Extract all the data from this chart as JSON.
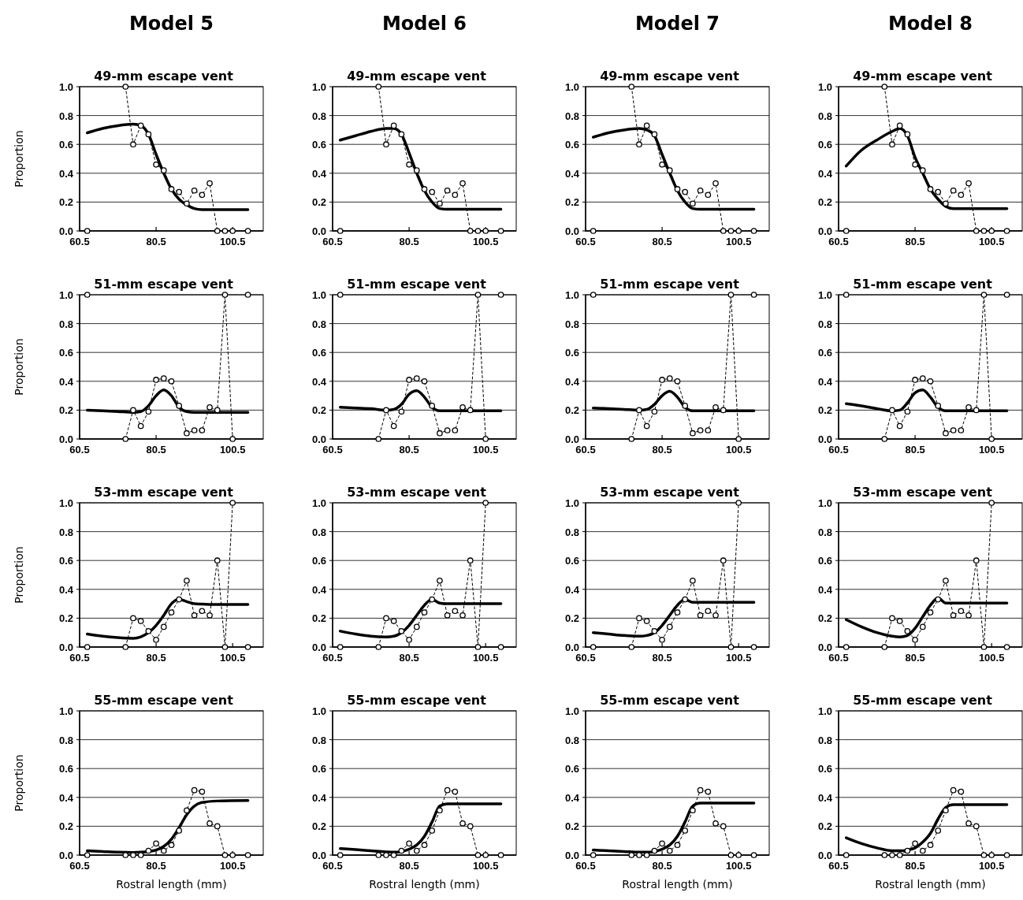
{
  "chart_data": [
    {
      "type": "line",
      "title": "Model 5",
      "subtitle": "49-mm escape vent",
      "ylabel": "Proportion",
      "x": [
        62.5,
        64.5,
        66.5,
        68.5,
        70.5,
        72.5,
        74.5,
        76.5,
        78.5,
        80.5,
        82.5,
        84.5,
        86.5,
        88.5,
        90.5,
        92.5,
        94.5,
        96.5,
        98.5,
        100.5,
        102.5,
        104.5
      ],
      "xlim": [
        60.5,
        108.5
      ],
      "xticks": [
        60.5,
        80.5,
        100.5
      ],
      "ylim": [
        0,
        1
      ],
      "yticks": [
        {
          "value": 0,
          "label": "0.0"
        },
        {
          "value": 0.2,
          "label": "0.2"
        },
        {
          "value": 0.4,
          "label": "0.4"
        },
        {
          "value": 0.6,
          "label": "0.6"
        },
        {
          "value": 0.8,
          "label": "0.8"
        },
        {
          "value": 1,
          "label": "1.0"
        }
      ],
      "grid": "y",
      "series": [
        {
          "type": "line",
          "color": "#000000",
          "marker": "circle",
          "line_style": "dashed",
          "values": [
            0,
            null,
            null,
            null,
            null,
            1.0,
            0.6,
            0.73,
            0.67,
            0.46,
            0.42,
            0.29,
            0.27,
            0.19,
            0.28,
            0.25,
            0.33,
            0,
            0,
            0,
            null,
            0
          ]
        },
        {
          "type": "line",
          "color": "#000000",
          "marker": "none",
          "line_style": "solid",
          "x": [
            62.5,
            66.5,
            70.5,
            74.5,
            76.5,
            78.5,
            80.5,
            82.5,
            84.5,
            86.5,
            88.5,
            90.5,
            92.5,
            96.5,
            104.5
          ],
          "values": [
            0.68,
            0.71,
            0.73,
            0.74,
            0.73,
            0.67,
            0.53,
            0.4,
            0.29,
            0.22,
            0.18,
            0.155,
            0.148,
            0.148,
            0.148
          ]
        }
      ]
    },
    {
      "type": "line",
      "title": "Model 6",
      "subtitle": "49-mm escape vent",
      "x": [
        62.5,
        64.5,
        66.5,
        68.5,
        70.5,
        72.5,
        74.5,
        76.5,
        78.5,
        80.5,
        82.5,
        84.5,
        86.5,
        88.5,
        90.5,
        92.5,
        94.5,
        96.5,
        98.5,
        100.5,
        102.5,
        104.5
      ],
      "xlim": [
        60.5,
        108.5
      ],
      "xticks": [
        60.5,
        80.5,
        100.5
      ],
      "ylim": [
        0,
        1
      ],
      "yticks": [
        {
          "value": 0,
          "label": "0.0"
        },
        {
          "value": 0.2,
          "label": "0.2"
        },
        {
          "value": 0.4,
          "label": "0.4"
        },
        {
          "value": 0.6,
          "label": "0.6"
        },
        {
          "value": 0.8,
          "label": "0.8"
        },
        {
          "value": 1,
          "label": "1.0"
        }
      ],
      "grid": "y",
      "series": [
        {
          "type": "line",
          "color": "#000000",
          "marker": "circle",
          "line_style": "dashed",
          "values": [
            0,
            null,
            null,
            null,
            null,
            1.0,
            0.6,
            0.73,
            0.67,
            0.46,
            0.42,
            0.29,
            0.27,
            0.19,
            0.28,
            0.25,
            0.33,
            0,
            0,
            0,
            null,
            0
          ]
        },
        {
          "type": "line",
          "color": "#000000",
          "marker": "none",
          "line_style": "solid",
          "x": [
            62.5,
            66.5,
            70.5,
            74.5,
            76.5,
            78.5,
            80.5,
            82.5,
            84.5,
            86.5,
            88.5,
            90.5,
            92.5,
            96.5,
            104.5
          ],
          "values": [
            0.63,
            0.66,
            0.69,
            0.71,
            0.71,
            0.67,
            0.54,
            0.4,
            0.28,
            0.2,
            0.155,
            0.15,
            0.15,
            0.15,
            0.15
          ]
        }
      ]
    },
    {
      "type": "line",
      "title": "Model 7",
      "subtitle": "49-mm escape vent",
      "x": [
        62.5,
        64.5,
        66.5,
        68.5,
        70.5,
        72.5,
        74.5,
        76.5,
        78.5,
        80.5,
        82.5,
        84.5,
        86.5,
        88.5,
        90.5,
        92.5,
        94.5,
        96.5,
        98.5,
        100.5,
        102.5,
        104.5
      ],
      "xlim": [
        60.5,
        108.5
      ],
      "xticks": [
        60.5,
        80.5,
        100.5
      ],
      "ylim": [
        0,
        1
      ],
      "yticks": [
        {
          "value": 0,
          "label": "0.0"
        },
        {
          "value": 0.2,
          "label": "0.2"
        },
        {
          "value": 0.4,
          "label": "0.4"
        },
        {
          "value": 0.6,
          "label": "0.6"
        },
        {
          "value": 0.8,
          "label": "0.8"
        },
        {
          "value": 1,
          "label": "1.0"
        }
      ],
      "grid": "y",
      "series": [
        {
          "type": "line",
          "color": "#000000",
          "marker": "circle",
          "line_style": "dashed",
          "values": [
            0,
            null,
            null,
            null,
            null,
            1.0,
            0.6,
            0.73,
            0.67,
            0.46,
            0.42,
            0.29,
            0.27,
            0.19,
            0.28,
            0.25,
            0.33,
            0,
            0,
            0,
            null,
            0
          ]
        },
        {
          "type": "line",
          "color": "#000000",
          "marker": "none",
          "line_style": "solid",
          "x": [
            62.5,
            66.5,
            70.5,
            74.5,
            76.5,
            78.5,
            80.5,
            82.5,
            84.5,
            86.5,
            88.5,
            90.5,
            92.5,
            96.5,
            104.5
          ],
          "values": [
            0.65,
            0.68,
            0.7,
            0.71,
            0.7,
            0.66,
            0.53,
            0.4,
            0.28,
            0.2,
            0.155,
            0.15,
            0.15,
            0.15,
            0.15
          ]
        }
      ]
    },
    {
      "type": "line",
      "title": "Model 8",
      "subtitle": "49-mm escape vent",
      "x": [
        62.5,
        64.5,
        66.5,
        68.5,
        70.5,
        72.5,
        74.5,
        76.5,
        78.5,
        80.5,
        82.5,
        84.5,
        86.5,
        88.5,
        90.5,
        92.5,
        94.5,
        96.5,
        98.5,
        100.5,
        102.5,
        104.5
      ],
      "xlim": [
        60.5,
        108.5
      ],
      "xticks": [
        60.5,
        80.5,
        100.5
      ],
      "ylim": [
        0,
        1
      ],
      "yticks": [
        {
          "value": 0,
          "label": "0.0"
        },
        {
          "value": 0.2,
          "label": "0.2"
        },
        {
          "value": 0.4,
          "label": "0.4"
        },
        {
          "value": 0.6,
          "label": "0.6"
        },
        {
          "value": 0.8,
          "label": "0.8"
        },
        {
          "value": 1,
          "label": "1.0"
        }
      ],
      "grid": "y",
      "series": [
        {
          "type": "line",
          "color": "#000000",
          "marker": "circle",
          "line_style": "dashed",
          "values": [
            0,
            null,
            null,
            null,
            null,
            1.0,
            0.6,
            0.73,
            0.67,
            0.46,
            0.42,
            0.29,
            0.27,
            0.19,
            0.28,
            0.25,
            0.33,
            0,
            0,
            0,
            null,
            0
          ]
        },
        {
          "type": "line",
          "color": "#000000",
          "marker": "none",
          "line_style": "solid",
          "x": [
            62.5,
            66.5,
            70.5,
            74.5,
            76.5,
            78.5,
            80.5,
            82.5,
            84.5,
            86.5,
            88.5,
            90.5,
            92.5,
            96.5,
            104.5
          ],
          "values": [
            0.45,
            0.56,
            0.63,
            0.69,
            0.71,
            0.66,
            0.51,
            0.4,
            0.29,
            0.22,
            0.17,
            0.155,
            0.155,
            0.155,
            0.155
          ]
        }
      ]
    },
    {
      "type": "line",
      "title": "51-mm escape vent",
      "ylabel": "Proportion",
      "x": [
        62.5,
        64.5,
        66.5,
        68.5,
        70.5,
        72.5,
        74.5,
        76.5,
        78.5,
        80.5,
        82.5,
        84.5,
        86.5,
        88.5,
        90.5,
        92.5,
        94.5,
        96.5,
        98.5,
        100.5,
        102.5,
        104.5
      ],
      "xlim": [
        60.5,
        108.5
      ],
      "xticks": [
        60.5,
        80.5,
        100.5
      ],
      "ylim": [
        0,
        1
      ],
      "yticks": [
        {
          "value": 0,
          "label": "0.0"
        },
        {
          "value": 0.2,
          "label": "0.2"
        },
        {
          "value": 0.4,
          "label": "0.4"
        },
        {
          "value": 0.6,
          "label": "0.6"
        },
        {
          "value": 0.8,
          "label": "0.8"
        },
        {
          "value": 1,
          "label": "1.0"
        }
      ],
      "grid": "y",
      "series": [
        {
          "type": "line",
          "color": "#000000",
          "marker": "circle",
          "line_style": "dashed",
          "values": [
            1.0,
            null,
            null,
            null,
            null,
            0,
            0.2,
            0.09,
            0.19,
            0.41,
            0.42,
            0.4,
            0.23,
            0.04,
            0.06,
            0.06,
            0.22,
            0.2,
            1.0,
            0,
            null,
            1.0
          ]
        },
        {
          "type": "line",
          "color": "#000000",
          "marker": "none",
          "line_style": "solid",
          "x": [
            62.5,
            66.5,
            70.5,
            74.5,
            76.5,
            78.5,
            80.5,
            82.5,
            84.5,
            86.5,
            88.5,
            90.5,
            92.5,
            96.5,
            104.5
          ],
          "values": [
            0.2,
            0.195,
            0.19,
            0.185,
            0.19,
            0.23,
            0.3,
            0.34,
            0.3,
            0.22,
            0.19,
            0.185,
            0.185,
            0.185,
            0.185
          ]
        }
      ]
    },
    {
      "type": "line",
      "title": "51-mm escape vent",
      "x": [
        62.5,
        64.5,
        66.5,
        68.5,
        70.5,
        72.5,
        74.5,
        76.5,
        78.5,
        80.5,
        82.5,
        84.5,
        86.5,
        88.5,
        90.5,
        92.5,
        94.5,
        96.5,
        98.5,
        100.5,
        102.5,
        104.5
      ],
      "xlim": [
        60.5,
        108.5
      ],
      "xticks": [
        60.5,
        80.5,
        100.5
      ],
      "ylim": [
        0,
        1
      ],
      "yticks": [
        {
          "value": 0,
          "label": "0.0"
        },
        {
          "value": 0.2,
          "label": "0.2"
        },
        {
          "value": 0.4,
          "label": "0.4"
        },
        {
          "value": 0.6,
          "label": "0.6"
        },
        {
          "value": 0.8,
          "label": "0.8"
        },
        {
          "value": 1,
          "label": "1.0"
        }
      ],
      "grid": "y",
      "series": [
        {
          "type": "line",
          "color": "#000000",
          "marker": "circle",
          "line_style": "dashed",
          "values": [
            1.0,
            null,
            null,
            null,
            null,
            0,
            0.2,
            0.09,
            0.19,
            0.41,
            0.42,
            0.4,
            0.23,
            0.04,
            0.06,
            0.06,
            0.22,
            0.2,
            1.0,
            0,
            null,
            1.0
          ]
        },
        {
          "type": "line",
          "color": "#000000",
          "marker": "none",
          "line_style": "solid",
          "x": [
            62.5,
            66.5,
            70.5,
            74.5,
            76.5,
            78.5,
            80.5,
            82.5,
            84.5,
            86.5,
            88.5,
            90.5,
            92.5,
            96.5,
            104.5
          ],
          "values": [
            0.22,
            0.215,
            0.21,
            0.2,
            0.205,
            0.24,
            0.31,
            0.335,
            0.29,
            0.22,
            0.195,
            0.195,
            0.195,
            0.195,
            0.195
          ]
        }
      ]
    },
    {
      "type": "line",
      "title": "51-mm escape vent",
      "x": [
        62.5,
        64.5,
        66.5,
        68.5,
        70.5,
        72.5,
        74.5,
        76.5,
        78.5,
        80.5,
        82.5,
        84.5,
        86.5,
        88.5,
        90.5,
        92.5,
        94.5,
        96.5,
        98.5,
        100.5,
        102.5,
        104.5
      ],
      "xlim": [
        60.5,
        108.5
      ],
      "xticks": [
        60.5,
        80.5,
        100.5
      ],
      "ylim": [
        0,
        1
      ],
      "yticks": [
        {
          "value": 0,
          "label": "0.0"
        },
        {
          "value": 0.2,
          "label": "0.2"
        },
        {
          "value": 0.4,
          "label": "0.4"
        },
        {
          "value": 0.6,
          "label": "0.6"
        },
        {
          "value": 0.8,
          "label": "0.8"
        },
        {
          "value": 1,
          "label": "1.0"
        }
      ],
      "grid": "y",
      "series": [
        {
          "type": "line",
          "color": "#000000",
          "marker": "circle",
          "line_style": "dashed",
          "values": [
            1.0,
            null,
            null,
            null,
            null,
            0,
            0.2,
            0.09,
            0.19,
            0.41,
            0.42,
            0.4,
            0.23,
            0.04,
            0.06,
            0.06,
            0.22,
            0.2,
            1.0,
            0,
            null,
            1.0
          ]
        },
        {
          "type": "line",
          "color": "#000000",
          "marker": "none",
          "line_style": "solid",
          "x": [
            62.5,
            66.5,
            70.5,
            74.5,
            76.5,
            78.5,
            80.5,
            82.5,
            84.5,
            86.5,
            88.5,
            90.5,
            92.5,
            96.5,
            104.5
          ],
          "values": [
            0.215,
            0.21,
            0.205,
            0.2,
            0.205,
            0.24,
            0.3,
            0.33,
            0.29,
            0.22,
            0.195,
            0.195,
            0.195,
            0.195,
            0.195
          ]
        }
      ]
    },
    {
      "type": "line",
      "title": "51-mm escape vent",
      "x": [
        62.5,
        64.5,
        66.5,
        68.5,
        70.5,
        72.5,
        74.5,
        76.5,
        78.5,
        80.5,
        82.5,
        84.5,
        86.5,
        88.5,
        90.5,
        92.5,
        94.5,
        96.5,
        98.5,
        100.5,
        102.5,
        104.5
      ],
      "xlim": [
        60.5,
        108.5
      ],
      "xticks": [
        60.5,
        80.5,
        100.5
      ],
      "ylim": [
        0,
        1
      ],
      "yticks": [
        {
          "value": 0,
          "label": "0.0"
        },
        {
          "value": 0.2,
          "label": "0.2"
        },
        {
          "value": 0.4,
          "label": "0.4"
        },
        {
          "value": 0.6,
          "label": "0.6"
        },
        {
          "value": 0.8,
          "label": "0.8"
        },
        {
          "value": 1,
          "label": "1.0"
        }
      ],
      "grid": "y",
      "series": [
        {
          "type": "line",
          "color": "#000000",
          "marker": "circle",
          "line_style": "dashed",
          "values": [
            1.0,
            null,
            null,
            null,
            null,
            0,
            0.2,
            0.09,
            0.19,
            0.41,
            0.42,
            0.4,
            0.23,
            0.04,
            0.06,
            0.06,
            0.22,
            0.2,
            1.0,
            0,
            null,
            1.0
          ]
        },
        {
          "type": "line",
          "color": "#000000",
          "marker": "none",
          "line_style": "solid",
          "x": [
            62.5,
            66.5,
            70.5,
            74.5,
            76.5,
            78.5,
            80.5,
            82.5,
            84.5,
            86.5,
            88.5,
            90.5,
            92.5,
            96.5,
            104.5
          ],
          "values": [
            0.245,
            0.23,
            0.21,
            0.195,
            0.2,
            0.25,
            0.32,
            0.34,
            0.29,
            0.22,
            0.195,
            0.195,
            0.195,
            0.195,
            0.195
          ]
        }
      ]
    },
    {
      "type": "line",
      "title": "53-mm escape vent",
      "ylabel": "Proportion",
      "x": [
        62.5,
        64.5,
        66.5,
        68.5,
        70.5,
        72.5,
        74.5,
        76.5,
        78.5,
        80.5,
        82.5,
        84.5,
        86.5,
        88.5,
        90.5,
        92.5,
        94.5,
        96.5,
        98.5,
        100.5,
        102.5,
        104.5
      ],
      "xlim": [
        60.5,
        108.5
      ],
      "xticks": [
        60.5,
        80.5,
        100.5
      ],
      "ylim": [
        0,
        1
      ],
      "yticks": [
        {
          "value": 0,
          "label": "0.0"
        },
        {
          "value": 0.2,
          "label": "0.2"
        },
        {
          "value": 0.4,
          "label": "0.4"
        },
        {
          "value": 0.6,
          "label": "0.6"
        },
        {
          "value": 0.8,
          "label": "0.8"
        },
        {
          "value": 1,
          "label": "1.0"
        }
      ],
      "grid": "y",
      "series": [
        {
          "type": "line",
          "color": "#000000",
          "marker": "circle",
          "line_style": "dashed",
          "values": [
            0,
            null,
            null,
            null,
            null,
            0,
            0.2,
            0.18,
            0.11,
            0.05,
            0.14,
            0.24,
            0.33,
            0.46,
            0.22,
            0.25,
            0.22,
            0.6,
            0,
            1.0,
            null,
            0
          ]
        },
        {
          "type": "line",
          "color": "#000000",
          "marker": "none",
          "line_style": "solid",
          "x": [
            62.5,
            66.5,
            70.5,
            74.5,
            76.5,
            78.5,
            80.5,
            82.5,
            84.5,
            86.5,
            88.5,
            90.5,
            92.5,
            96.5,
            104.5
          ],
          "values": [
            0.09,
            0.075,
            0.065,
            0.06,
            0.07,
            0.1,
            0.15,
            0.22,
            0.3,
            0.33,
            0.315,
            0.3,
            0.298,
            0.295,
            0.295
          ]
        }
      ]
    },
    {
      "type": "line",
      "title": "53-mm escape vent",
      "x": [
        62.5,
        64.5,
        66.5,
        68.5,
        70.5,
        72.5,
        74.5,
        76.5,
        78.5,
        80.5,
        82.5,
        84.5,
        86.5,
        88.5,
        90.5,
        92.5,
        94.5,
        96.5,
        98.5,
        100.5,
        102.5,
        104.5
      ],
      "xlim": [
        60.5,
        108.5
      ],
      "xticks": [
        60.5,
        80.5,
        100.5
      ],
      "ylim": [
        0,
        1
      ],
      "yticks": [
        {
          "value": 0,
          "label": "0.0"
        },
        {
          "value": 0.2,
          "label": "0.2"
        },
        {
          "value": 0.4,
          "label": "0.4"
        },
        {
          "value": 0.6,
          "label": "0.6"
        },
        {
          "value": 0.8,
          "label": "0.8"
        },
        {
          "value": 1,
          "label": "1.0"
        }
      ],
      "grid": "y",
      "series": [
        {
          "type": "line",
          "color": "#000000",
          "marker": "circle",
          "line_style": "dashed",
          "values": [
            0,
            null,
            null,
            null,
            null,
            0,
            0.2,
            0.18,
            0.11,
            0.05,
            0.14,
            0.24,
            0.33,
            0.46,
            0.22,
            0.25,
            0.22,
            0.6,
            0,
            1.0,
            null,
            0
          ]
        },
        {
          "type": "line",
          "color": "#000000",
          "marker": "none",
          "line_style": "solid",
          "x": [
            62.5,
            66.5,
            70.5,
            74.5,
            76.5,
            78.5,
            80.5,
            82.5,
            84.5,
            86.5,
            88.5,
            90.5,
            92.5,
            96.5,
            104.5
          ],
          "values": [
            0.11,
            0.09,
            0.075,
            0.07,
            0.075,
            0.1,
            0.15,
            0.22,
            0.29,
            0.33,
            0.305,
            0.3,
            0.3,
            0.3,
            0.3
          ]
        }
      ]
    },
    {
      "type": "line",
      "title": "53-mm escape vent",
      "x": [
        62.5,
        64.5,
        66.5,
        68.5,
        70.5,
        72.5,
        74.5,
        76.5,
        78.5,
        80.5,
        82.5,
        84.5,
        86.5,
        88.5,
        90.5,
        92.5,
        94.5,
        96.5,
        98.5,
        100.5,
        102.5,
        104.5
      ],
      "xlim": [
        60.5,
        108.5
      ],
      "xticks": [
        60.5,
        80.5,
        100.5
      ],
      "ylim": [
        0,
        1
      ],
      "yticks": [
        {
          "value": 0,
          "label": "0.0"
        },
        {
          "value": 0.2,
          "label": "0.2"
        },
        {
          "value": 0.4,
          "label": "0.4"
        },
        {
          "value": 0.6,
          "label": "0.6"
        },
        {
          "value": 0.8,
          "label": "0.8"
        },
        {
          "value": 1,
          "label": "1.0"
        }
      ],
      "grid": "y",
      "series": [
        {
          "type": "line",
          "color": "#000000",
          "marker": "circle",
          "line_style": "dashed",
          "values": [
            0,
            null,
            null,
            null,
            null,
            0,
            0.2,
            0.18,
            0.11,
            0.05,
            0.14,
            0.24,
            0.33,
            0.46,
            0.22,
            0.25,
            0.22,
            0.6,
            0,
            1.0,
            null,
            0
          ]
        },
        {
          "type": "line",
          "color": "#000000",
          "marker": "none",
          "line_style": "solid",
          "x": [
            62.5,
            66.5,
            70.5,
            74.5,
            76.5,
            78.5,
            80.5,
            82.5,
            84.5,
            86.5,
            88.5,
            90.5,
            92.5,
            96.5,
            104.5
          ],
          "values": [
            0.1,
            0.09,
            0.08,
            0.075,
            0.08,
            0.1,
            0.15,
            0.22,
            0.29,
            0.33,
            0.31,
            0.31,
            0.31,
            0.31,
            0.31
          ]
        }
      ]
    },
    {
      "type": "line",
      "title": "53-mm escape vent",
      "x": [
        62.5,
        64.5,
        66.5,
        68.5,
        70.5,
        72.5,
        74.5,
        76.5,
        78.5,
        80.5,
        82.5,
        84.5,
        86.5,
        88.5,
        90.5,
        92.5,
        94.5,
        96.5,
        98.5,
        100.5,
        102.5,
        104.5
      ],
      "xlim": [
        60.5,
        108.5
      ],
      "xticks": [
        60.5,
        80.5,
        100.5
      ],
      "ylim": [
        0,
        1
      ],
      "yticks": [
        {
          "value": 0,
          "label": "0.0"
        },
        {
          "value": 0.2,
          "label": "0.2"
        },
        {
          "value": 0.4,
          "label": "0.4"
        },
        {
          "value": 0.6,
          "label": "0.6"
        },
        {
          "value": 0.8,
          "label": "0.8"
        },
        {
          "value": 1,
          "label": "1.0"
        }
      ],
      "grid": "y",
      "series": [
        {
          "type": "line",
          "color": "#000000",
          "marker": "circle",
          "line_style": "dashed",
          "values": [
            0,
            null,
            null,
            null,
            null,
            0,
            0.2,
            0.18,
            0.11,
            0.05,
            0.14,
            0.24,
            0.33,
            0.46,
            0.22,
            0.25,
            0.22,
            0.6,
            0,
            1.0,
            null,
            0
          ]
        },
        {
          "type": "line",
          "color": "#000000",
          "marker": "none",
          "line_style": "solid",
          "x": [
            62.5,
            66.5,
            70.5,
            74.5,
            76.5,
            78.5,
            80.5,
            82.5,
            84.5,
            86.5,
            88.5,
            90.5,
            92.5,
            96.5,
            104.5
          ],
          "values": [
            0.19,
            0.14,
            0.1,
            0.075,
            0.07,
            0.08,
            0.13,
            0.21,
            0.29,
            0.34,
            0.305,
            0.305,
            0.305,
            0.305,
            0.305
          ]
        }
      ]
    },
    {
      "type": "line",
      "title": "55-mm escape vent",
      "ylabel": "Proportion",
      "xlabel": "Rostral length (mm)",
      "x": [
        62.5,
        64.5,
        66.5,
        68.5,
        70.5,
        72.5,
        74.5,
        76.5,
        78.5,
        80.5,
        82.5,
        84.5,
        86.5,
        88.5,
        90.5,
        92.5,
        94.5,
        96.5,
        98.5,
        100.5,
        102.5,
        104.5
      ],
      "xlim": [
        60.5,
        108.5
      ],
      "xticks": [
        60.5,
        80.5,
        100.5
      ],
      "ylim": [
        0,
        1
      ],
      "yticks": [
        {
          "value": 0,
          "label": "0.0"
        },
        {
          "value": 0.2,
          "label": "0.2"
        },
        {
          "value": 0.4,
          "label": "0.4"
        },
        {
          "value": 0.6,
          "label": "0.6"
        },
        {
          "value": 0.8,
          "label": "0.8"
        },
        {
          "value": 1,
          "label": "1.0"
        }
      ],
      "grid": "y",
      "series": [
        {
          "type": "line",
          "color": "#000000",
          "marker": "circle",
          "line_style": "dashed",
          "values": [
            0,
            null,
            null,
            null,
            null,
            0,
            0,
            0,
            0.03,
            0.08,
            0.03,
            0.07,
            0.17,
            0.31,
            0.45,
            0.44,
            0.22,
            0.2,
            0,
            0,
            null,
            0
          ]
        },
        {
          "type": "line",
          "color": "#000000",
          "marker": "none",
          "line_style": "solid",
          "x": [
            62.5,
            66.5,
            70.5,
            74.5,
            76.5,
            78.5,
            80.5,
            82.5,
            84.5,
            86.5,
            88.5,
            90.5,
            92.5,
            96.5,
            104.5
          ],
          "values": [
            0.03,
            0.025,
            0.02,
            0.018,
            0.02,
            0.025,
            0.035,
            0.06,
            0.11,
            0.19,
            0.28,
            0.34,
            0.365,
            0.375,
            0.378
          ]
        }
      ]
    },
    {
      "type": "line",
      "title": "55-mm escape vent",
      "xlabel": "Rostral length (mm)",
      "x": [
        62.5,
        64.5,
        66.5,
        68.5,
        70.5,
        72.5,
        74.5,
        76.5,
        78.5,
        80.5,
        82.5,
        84.5,
        86.5,
        88.5,
        90.5,
        92.5,
        94.5,
        96.5,
        98.5,
        100.5,
        102.5,
        104.5
      ],
      "xlim": [
        60.5,
        108.5
      ],
      "xticks": [
        60.5,
        80.5,
        100.5
      ],
      "ylim": [
        0,
        1
      ],
      "yticks": [
        {
          "value": 0,
          "label": "0.0"
        },
        {
          "value": 0.2,
          "label": "0.2"
        },
        {
          "value": 0.4,
          "label": "0.4"
        },
        {
          "value": 0.6,
          "label": "0.6"
        },
        {
          "value": 0.8,
          "label": "0.8"
        },
        {
          "value": 1,
          "label": "1.0"
        }
      ],
      "grid": "y",
      "series": [
        {
          "type": "line",
          "color": "#000000",
          "marker": "circle",
          "line_style": "dashed",
          "values": [
            0,
            null,
            null,
            null,
            null,
            0,
            0,
            0,
            0.03,
            0.08,
            0.03,
            0.07,
            0.17,
            0.31,
            0.45,
            0.44,
            0.22,
            0.2,
            0,
            0,
            null,
            0
          ]
        },
        {
          "type": "line",
          "color": "#000000",
          "marker": "none",
          "line_style": "solid",
          "x": [
            62.5,
            66.5,
            70.5,
            74.5,
            76.5,
            78.5,
            80.5,
            82.5,
            84.5,
            86.5,
            88.5,
            90.5,
            92.5,
            96.5,
            104.5
          ],
          "values": [
            0.045,
            0.038,
            0.03,
            0.022,
            0.02,
            0.025,
            0.04,
            0.07,
            0.13,
            0.23,
            0.34,
            0.355,
            0.355,
            0.355,
            0.355
          ]
        }
      ]
    },
    {
      "type": "line",
      "title": "55-mm escape vent",
      "xlabel": "Rostral length (mm)",
      "x": [
        62.5,
        64.5,
        66.5,
        68.5,
        70.5,
        72.5,
        74.5,
        76.5,
        78.5,
        80.5,
        82.5,
        84.5,
        86.5,
        88.5,
        90.5,
        92.5,
        94.5,
        96.5,
        98.5,
        100.5,
        102.5,
        104.5
      ],
      "xlim": [
        60.5,
        108.5
      ],
      "xticks": [
        60.5,
        80.5,
        100.5
      ],
      "ylim": [
        0,
        1
      ],
      "yticks": [
        {
          "value": 0,
          "label": "0.0"
        },
        {
          "value": 0.2,
          "label": "0.2"
        },
        {
          "value": 0.4,
          "label": "0.4"
        },
        {
          "value": 0.6,
          "label": "0.6"
        },
        {
          "value": 0.8,
          "label": "0.8"
        },
        {
          "value": 1,
          "label": "1.0"
        }
      ],
      "grid": "y",
      "series": [
        {
          "type": "line",
          "color": "#000000",
          "marker": "circle",
          "line_style": "dashed",
          "values": [
            0,
            null,
            null,
            null,
            null,
            0,
            0,
            0,
            0.03,
            0.08,
            0.03,
            0.07,
            0.17,
            0.31,
            0.45,
            0.44,
            0.22,
            0.2,
            0,
            0,
            null,
            0
          ]
        },
        {
          "type": "line",
          "color": "#000000",
          "marker": "none",
          "line_style": "solid",
          "x": [
            62.5,
            66.5,
            70.5,
            74.5,
            76.5,
            78.5,
            80.5,
            82.5,
            84.5,
            86.5,
            88.5,
            90.5,
            92.5,
            96.5,
            104.5
          ],
          "values": [
            0.035,
            0.03,
            0.025,
            0.02,
            0.02,
            0.025,
            0.04,
            0.07,
            0.13,
            0.23,
            0.34,
            0.36,
            0.36,
            0.36,
            0.36
          ]
        }
      ]
    },
    {
      "type": "line",
      "title": "55-mm escape vent",
      "xlabel": "Rostral length (mm)",
      "x": [
        62.5,
        64.5,
        66.5,
        68.5,
        70.5,
        72.5,
        74.5,
        76.5,
        78.5,
        80.5,
        82.5,
        84.5,
        86.5,
        88.5,
        90.5,
        92.5,
        94.5,
        96.5,
        98.5,
        100.5,
        102.5,
        104.5
      ],
      "xlim": [
        60.5,
        108.5
      ],
      "xticks": [
        60.5,
        80.5,
        100.5
      ],
      "ylim": [
        0,
        1
      ],
      "yticks": [
        {
          "value": 0,
          "label": "0.0"
        },
        {
          "value": 0.2,
          "label": "0.2"
        },
        {
          "value": 0.4,
          "label": "0.4"
        },
        {
          "value": 0.6,
          "label": "0.6"
        },
        {
          "value": 0.8,
          "label": "0.8"
        },
        {
          "value": 1,
          "label": "1.0"
        }
      ],
      "grid": "y",
      "series": [
        {
          "type": "line",
          "color": "#000000",
          "marker": "circle",
          "line_style": "dashed",
          "values": [
            0,
            null,
            null,
            null,
            null,
            0,
            0,
            0,
            0.03,
            0.08,
            0.03,
            0.07,
            0.17,
            0.31,
            0.45,
            0.44,
            0.22,
            0.2,
            0,
            0,
            null,
            0
          ]
        },
        {
          "type": "line",
          "color": "#000000",
          "marker": "none",
          "line_style": "solid",
          "x": [
            62.5,
            66.5,
            70.5,
            74.5,
            76.5,
            78.5,
            80.5,
            82.5,
            84.5,
            86.5,
            88.5,
            90.5,
            92.5,
            96.5,
            104.5
          ],
          "values": [
            0.12,
            0.08,
            0.05,
            0.03,
            0.03,
            0.035,
            0.05,
            0.09,
            0.15,
            0.25,
            0.33,
            0.35,
            0.35,
            0.35,
            0.35
          ]
        }
      ]
    }
  ]
}
